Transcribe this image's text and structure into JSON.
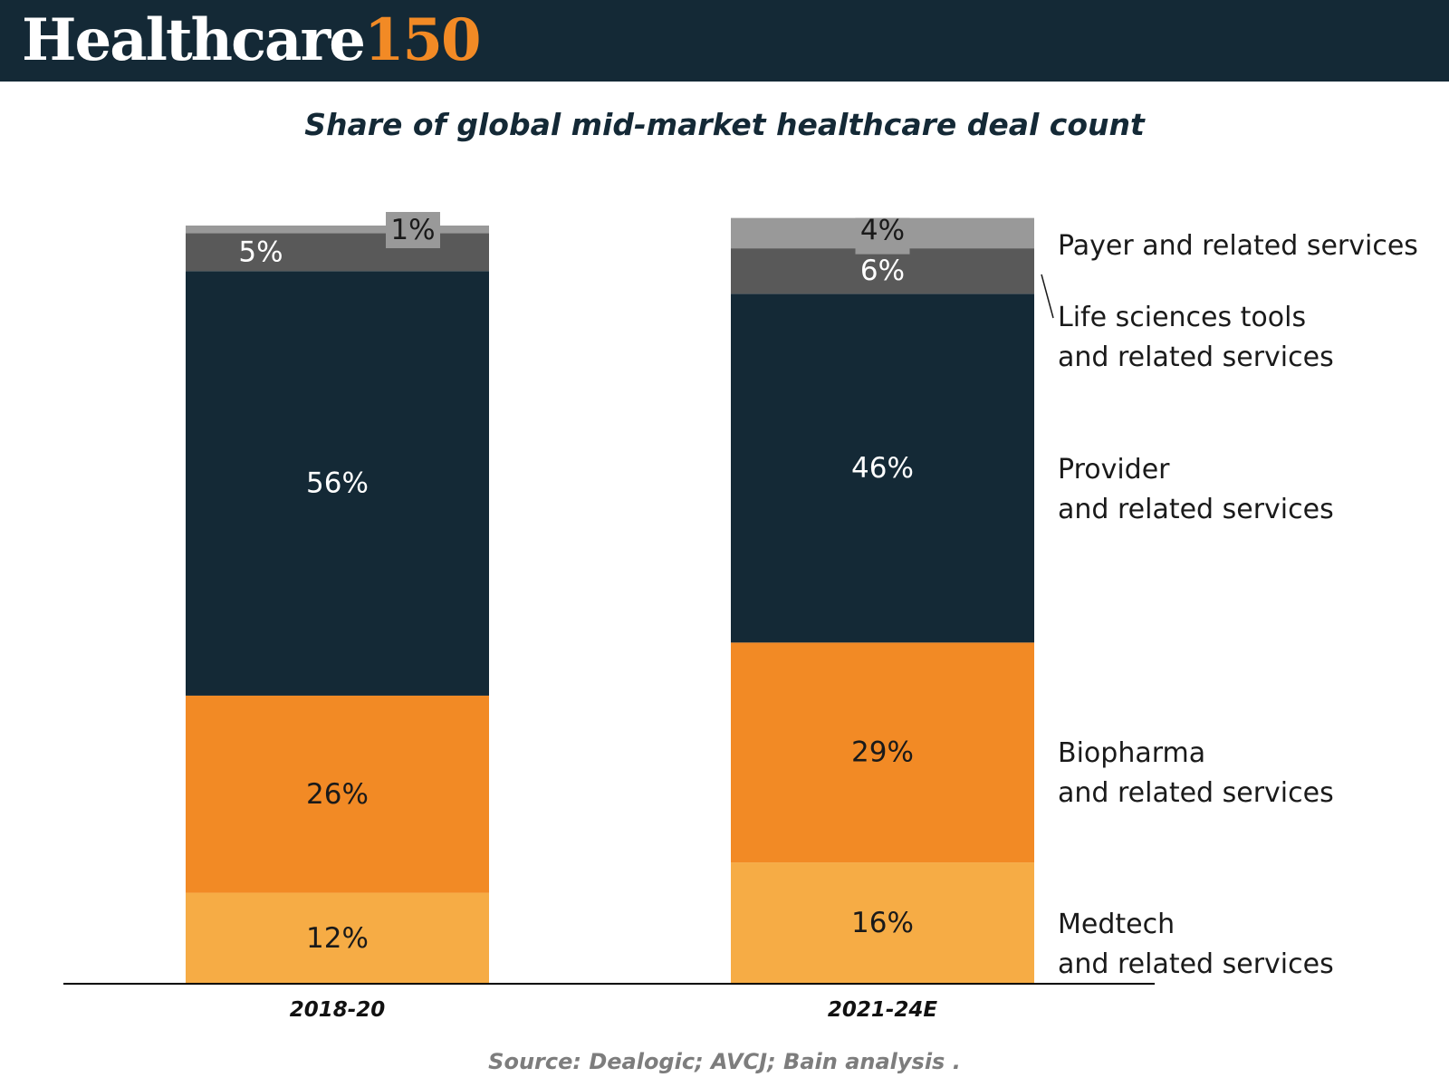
{
  "header": {
    "logo_word": "Healthcare",
    "logo_number": "150"
  },
  "colors": {
    "header_bg": "#142936",
    "accent_orange": "#f28a25",
    "title": "#142936"
  },
  "chart_data": {
    "type": "bar",
    "stacked": true,
    "title": "Share of global mid-market healthcare deal count",
    "categories": [
      "2018-20",
      "2021-24E"
    ],
    "series": [
      {
        "name": "Medtech\nand related services",
        "values": [
          12,
          16
        ],
        "labels": [
          "12%",
          "16%"
        ],
        "color": "#f6ac45",
        "label_color": "#1a1a1a"
      },
      {
        "name": "Biopharma\nand related services",
        "values": [
          26,
          29
        ],
        "labels": [
          "26%",
          "29%"
        ],
        "color": "#f28a25",
        "label_color": "#1a1a1a"
      },
      {
        "name": "Provider\nand related services",
        "values": [
          56,
          46
        ],
        "labels": [
          "56%",
          "46%"
        ],
        "color": "#142936",
        "label_color": "#ffffff"
      },
      {
        "name": "Life sciences tools\nand related services",
        "values": [
          5,
          6
        ],
        "labels": [
          "5%",
          "6%"
        ],
        "color": "#595959",
        "label_color": "#ffffff"
      },
      {
        "name": "Payer and related services",
        "values": [
          1,
          4
        ],
        "labels": [
          "1%",
          "4%"
        ],
        "color": "#999999",
        "label_color": "#1a1a1a"
      }
    ],
    "ylim": [
      0,
      100
    ],
    "legend": "right",
    "grid": false,
    "xlabel": "",
    "ylabel": ""
  },
  "source": "Source: Dealogic; AVCJ; Bain analysis ."
}
